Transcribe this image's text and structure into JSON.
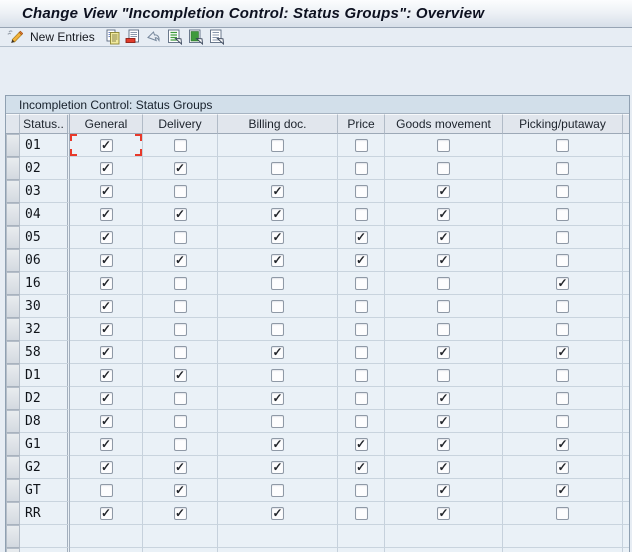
{
  "window": {
    "title": "Change View \"Incompletion Control: Status Groups\": Overview"
  },
  "toolbar": {
    "new_entries_label": "New Entries",
    "icons": [
      "pencil-icon",
      "copy-icon",
      "delete-icon",
      "undo-icon",
      "select-all-icon",
      "select-block-icon",
      "deselect-all-icon"
    ]
  },
  "table": {
    "group_title": "Incompletion Control: Status Groups",
    "columns": [
      {
        "key": "status",
        "label": "Status.."
      },
      {
        "key": "general",
        "label": "General"
      },
      {
        "key": "delivery",
        "label": "Delivery"
      },
      {
        "key": "billing",
        "label": "Billing doc."
      },
      {
        "key": "price",
        "label": "Price"
      },
      {
        "key": "goods",
        "label": "Goods movement"
      },
      {
        "key": "picking",
        "label": "Picking/putaway"
      }
    ],
    "rows": [
      {
        "status": "01",
        "general": true,
        "delivery": false,
        "billing": false,
        "price": false,
        "goods": false,
        "picking": false
      },
      {
        "status": "02",
        "general": true,
        "delivery": true,
        "billing": false,
        "price": false,
        "goods": false,
        "picking": false
      },
      {
        "status": "03",
        "general": true,
        "delivery": false,
        "billing": true,
        "price": false,
        "goods": true,
        "picking": false
      },
      {
        "status": "04",
        "general": true,
        "delivery": true,
        "billing": true,
        "price": false,
        "goods": true,
        "picking": false
      },
      {
        "status": "05",
        "general": true,
        "delivery": false,
        "billing": true,
        "price": true,
        "goods": true,
        "picking": false
      },
      {
        "status": "06",
        "general": true,
        "delivery": true,
        "billing": true,
        "price": true,
        "goods": true,
        "picking": false
      },
      {
        "status": "16",
        "general": true,
        "delivery": false,
        "billing": false,
        "price": false,
        "goods": false,
        "picking": true
      },
      {
        "status": "30",
        "general": true,
        "delivery": false,
        "billing": false,
        "price": false,
        "goods": false,
        "picking": false
      },
      {
        "status": "32",
        "general": true,
        "delivery": false,
        "billing": false,
        "price": false,
        "goods": false,
        "picking": false
      },
      {
        "status": "58",
        "general": true,
        "delivery": false,
        "billing": true,
        "price": false,
        "goods": true,
        "picking": true
      },
      {
        "status": "D1",
        "general": true,
        "delivery": true,
        "billing": false,
        "price": false,
        "goods": false,
        "picking": false
      },
      {
        "status": "D2",
        "general": true,
        "delivery": false,
        "billing": true,
        "price": false,
        "goods": true,
        "picking": false
      },
      {
        "status": "D8",
        "general": true,
        "delivery": false,
        "billing": false,
        "price": false,
        "goods": true,
        "picking": false
      },
      {
        "status": "G1",
        "general": true,
        "delivery": false,
        "billing": true,
        "price": true,
        "goods": true,
        "picking": true
      },
      {
        "status": "G2",
        "general": true,
        "delivery": true,
        "billing": true,
        "price": true,
        "goods": true,
        "picking": true
      },
      {
        "status": "GT",
        "general": false,
        "delivery": true,
        "billing": false,
        "price": false,
        "goods": true,
        "picking": true
      },
      {
        "status": "RR",
        "general": true,
        "delivery": true,
        "billing": true,
        "price": false,
        "goods": true,
        "picking": false
      }
    ],
    "empty_rows": 2,
    "selection": {
      "row": "01",
      "column": "general"
    }
  },
  "colors": {
    "selection_marker": "#e8392a",
    "window_bg": "#e7edf4",
    "cell_bg": "#eaf1f7",
    "header_bg": "#e1e6ed",
    "group_title_bg": "#d2dfea"
  }
}
